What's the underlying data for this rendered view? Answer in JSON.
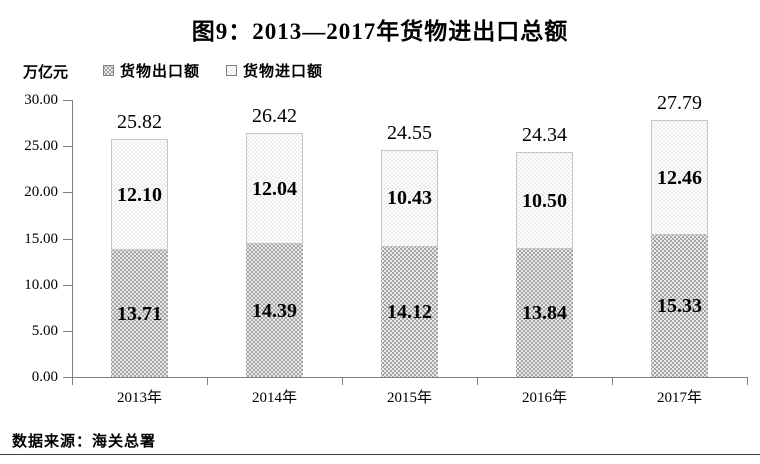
{
  "figure": {
    "title": "图9：2013—2017年货物进出口总额",
    "unit_label": "万亿元",
    "source_note": "数据来源：海关总署"
  },
  "legend": {
    "items": [
      {
        "label": "货物出口额",
        "swatch_icon": "dark-dotted-swatch"
      },
      {
        "label": "货物进口额",
        "swatch_icon": "light-dotted-swatch"
      }
    ]
  },
  "chart_data": {
    "type": "bar",
    "stacked": true,
    "title": "图9：2013—2017年货物进出口总额",
    "ylabel": "万亿元",
    "xlabel": "",
    "categories": [
      "2013年",
      "2014年",
      "2015年",
      "2016年",
      "2017年"
    ],
    "series": [
      {
        "name": "货物出口额",
        "values": [
          13.71,
          14.39,
          14.12,
          13.84,
          15.33
        ],
        "labels": [
          "13.71",
          "14.39",
          "14.12",
          "13.84",
          "15.33"
        ]
      },
      {
        "name": "货物进口额",
        "values": [
          12.1,
          12.04,
          10.43,
          10.5,
          12.46
        ],
        "labels": [
          "12.10",
          "12.04",
          "10.43",
          "10.50",
          "12.46"
        ]
      }
    ],
    "totals": [
      25.82,
      26.42,
      24.55,
      24.34,
      27.79
    ],
    "total_labels": [
      "25.82",
      "26.42",
      "24.55",
      "24.34",
      "27.79"
    ],
    "ylim": [
      0,
      30
    ],
    "ytick_step": 5,
    "yticks": [
      "0.00",
      "5.00",
      "10.00",
      "15.00",
      "20.00",
      "25.00",
      "30.00"
    ],
    "grid": false,
    "legend_position": "top-left",
    "colors": {
      "export_fill": "#a5a5a5",
      "export_dots": "#ffffff",
      "import_fill": "#ffffff",
      "import_dots": "#bdbdbd",
      "axis": "#808080",
      "text": "#000000"
    }
  }
}
